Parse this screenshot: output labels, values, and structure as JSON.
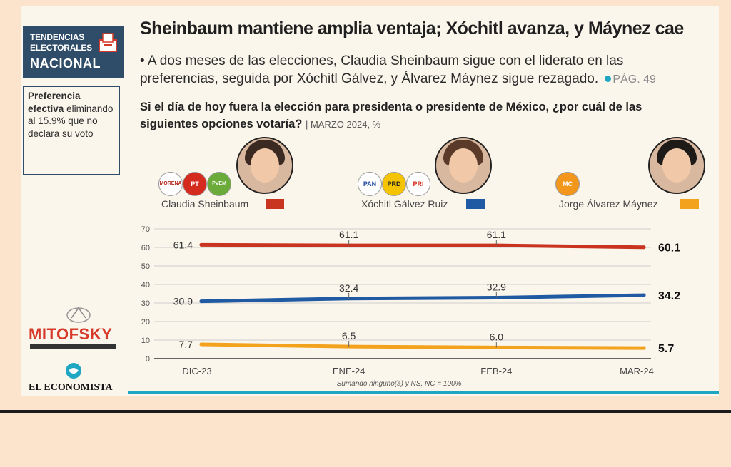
{
  "sidebar": {
    "brand_line1": "TENDENCIAS",
    "brand_line2": "ELECTORALES",
    "brand_line3": "NACIONAL",
    "note_bold": "Preferencia efectiva",
    "note_text": "eliminando al 15.9% que no declara su voto",
    "logo1": "MITOFSKY",
    "logo2": "EL ECONOMISTA"
  },
  "header": {
    "title": "Sheinbaum mantiene amplia ventaja; Xóchitl avanza, y Máynez cae",
    "lede": "• A dos meses de las elecciones, Claudia Sheinbaum sigue con el liderato en las preferencias, seguida por Xóchitl Gálvez, y Álvarez Máynez sigue rezagado.",
    "page_ref": "PÁG. 49",
    "question": "Si el día de hoy fuera la elección para presidenta o presidente de México, ¿por cuál de las siguientes opciones votaría?",
    "date": "| MARZO 2024, %"
  },
  "candidates": [
    {
      "name": "Claudia Sheinbaum",
      "color": "#c8341f",
      "parties": [
        "MORENA",
        "PT",
        "PVEM"
      ],
      "hair": "#3a2a22"
    },
    {
      "name": "Xóchitl Gálvez Ruiz",
      "color": "#1f5aa3",
      "parties": [
        "PAN",
        "PRD",
        "PRI"
      ],
      "hair": "#5a3a28"
    },
    {
      "name": "Jorge Álvarez Máynez",
      "color": "#f2a21c",
      "parties": [
        "MC"
      ],
      "hair": "#1e1a18"
    }
  ],
  "chart_data": {
    "type": "line",
    "categories": [
      "DIC-23",
      "ENE-24",
      "FEB-24",
      "MAR-24"
    ],
    "ylim": [
      0,
      70
    ],
    "yticks": [
      0,
      10,
      20,
      30,
      40,
      50,
      60,
      70
    ],
    "series": [
      {
        "name": "Claudia Sheinbaum",
        "color": "#c8341f",
        "values": [
          61.4,
          61.1,
          61.1,
          60.1
        ]
      },
      {
        "name": "Xóchitl Gálvez Ruiz",
        "color": "#1f5aa3",
        "values": [
          30.9,
          32.4,
          32.9,
          34.2
        ]
      },
      {
        "name": "Jorge Álvarez Máynez",
        "color": "#f2a21c",
        "values": [
          7.7,
          6.5,
          6.0,
          5.7
        ]
      }
    ],
    "footnote": "Sumando ninguno(a) y NS, NC = 100%"
  }
}
